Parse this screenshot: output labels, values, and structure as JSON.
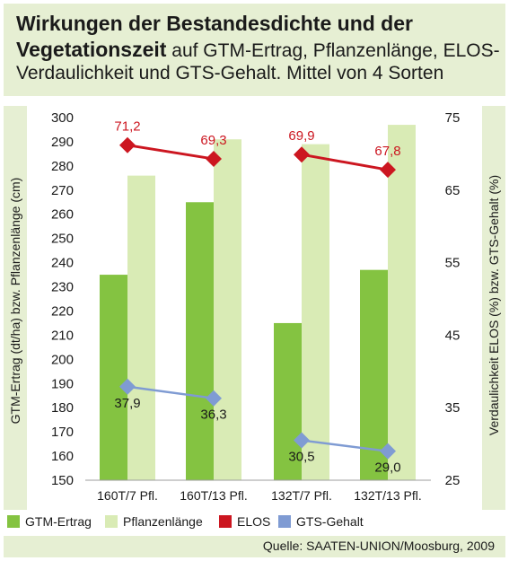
{
  "title": {
    "bold": "Wirkungen der Bestandesdichte und der Vegetationszeit",
    "normal": "auf GTM-Ertrag, Pflanzenlänge, ELOS-Verdaulichkeit und GTS-Gehalt. Mittel von 4 Sorten"
  },
  "source": "Quelle: SAATEN-UNION/Moosburg, 2009",
  "colors": {
    "gtm": "#84c341",
    "pflanzen": "#d9ebb5",
    "elos": "#cc1620",
    "gts": "#7f9bd3",
    "panel": "#e6efd3"
  },
  "chart_data": {
    "type": "bar",
    "categories": [
      "160T/7 Pfl.",
      "160T/13 Pfl.",
      "132T/7 Pfl.",
      "132T/13 Pfl."
    ],
    "series": [
      {
        "name": "GTM-Ertrag",
        "axis": "left",
        "kind": "bar",
        "values": [
          235,
          265,
          215,
          237
        ]
      },
      {
        "name": "Pflanzenlänge",
        "axis": "left",
        "kind": "bar",
        "values": [
          276,
          291,
          289,
          297
        ]
      },
      {
        "name": "ELOS",
        "axis": "right",
        "kind": "line",
        "groups": [
          [
            0,
            1
          ],
          [
            2,
            3
          ]
        ],
        "values": [
          71.2,
          69.3,
          69.9,
          67.8
        ],
        "labels": [
          "71,2",
          "69,3",
          "69,9",
          "67,8"
        ]
      },
      {
        "name": "GTS-Gehalt",
        "axis": "right",
        "kind": "line",
        "groups": [
          [
            0,
            1
          ],
          [
            2,
            3
          ]
        ],
        "values": [
          37.9,
          36.3,
          30.5,
          29.0
        ],
        "labels": [
          "37,9",
          "36,3",
          "30,5",
          "29,0"
        ]
      }
    ],
    "ylabel": "GTM-Ertrag (dt/ha) bzw. Pflanzenlänge (cm)",
    "ylabel_right": "Verdaulichkeit ELOS (%) bzw. GTS-Gehalt (%)",
    "ylim": [
      150,
      300
    ],
    "ylim_right": [
      25,
      75
    ],
    "yticks": [
      "300",
      "290",
      "280",
      "270",
      "260",
      "250",
      "240",
      "230",
      "220",
      "210",
      "200",
      "190",
      "180",
      "170",
      "160",
      "150"
    ],
    "yticks_right": [
      "75",
      "65",
      "55",
      "45",
      "35",
      "25"
    ],
    "legend_position": "bottom",
    "grid": false
  }
}
